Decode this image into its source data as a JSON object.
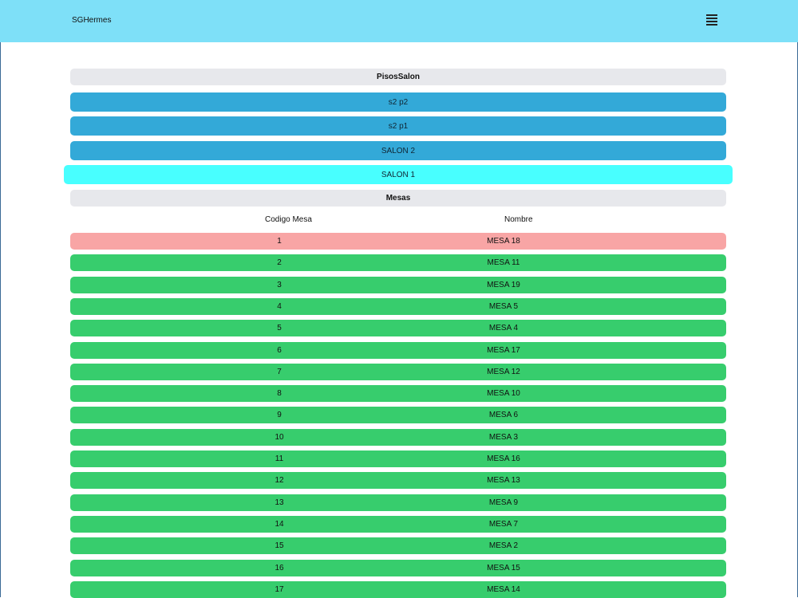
{
  "app": {
    "brand": "SGHermes"
  },
  "pisos": {
    "title": "PisosSalon",
    "items": [
      {
        "label": "s2 p2",
        "active": false
      },
      {
        "label": "s2 p1",
        "active": false
      },
      {
        "label": "SALON 2",
        "active": false
      },
      {
        "label": "SALON 1",
        "active": true
      }
    ]
  },
  "mesas": {
    "title": "Mesas",
    "columns": [
      "Codigo Mesa",
      "Nombre"
    ],
    "rows": [
      {
        "codigo": "1",
        "nombre": "MESA 18",
        "status": "occupied"
      },
      {
        "codigo": "2",
        "nombre": "MESA 11",
        "status": "free"
      },
      {
        "codigo": "3",
        "nombre": "MESA 19",
        "status": "free"
      },
      {
        "codigo": "4",
        "nombre": "MESA 5",
        "status": "free"
      },
      {
        "codigo": "5",
        "nombre": "MESA 4",
        "status": "free"
      },
      {
        "codigo": "6",
        "nombre": "MESA 17",
        "status": "free"
      },
      {
        "codigo": "7",
        "nombre": "MESA 12",
        "status": "free"
      },
      {
        "codigo": "8",
        "nombre": "MESA 10",
        "status": "free"
      },
      {
        "codigo": "9",
        "nombre": "MESA 6",
        "status": "free"
      },
      {
        "codigo": "10",
        "nombre": "MESA 3",
        "status": "free"
      },
      {
        "codigo": "11",
        "nombre": "MESA 16",
        "status": "free"
      },
      {
        "codigo": "12",
        "nombre": "MESA 13",
        "status": "free"
      },
      {
        "codigo": "13",
        "nombre": "MESA 9",
        "status": "free"
      },
      {
        "codigo": "14",
        "nombre": "MESA 7",
        "status": "free"
      },
      {
        "codigo": "15",
        "nombre": "MESA 2",
        "status": "free"
      },
      {
        "codigo": "16",
        "nombre": "MESA 15",
        "status": "free"
      },
      {
        "codigo": "17",
        "nombre": "MESA 14",
        "status": "free"
      }
    ]
  },
  "colors": {
    "topbar": "#7ee0f8",
    "salon_button": "#33a9d8",
    "salon_active": "#48ffff",
    "mesa_occupied": "#f8a5a5",
    "mesa_free": "#37cd6d"
  },
  "icons": {
    "menu": "hamburger-menu-icon"
  }
}
